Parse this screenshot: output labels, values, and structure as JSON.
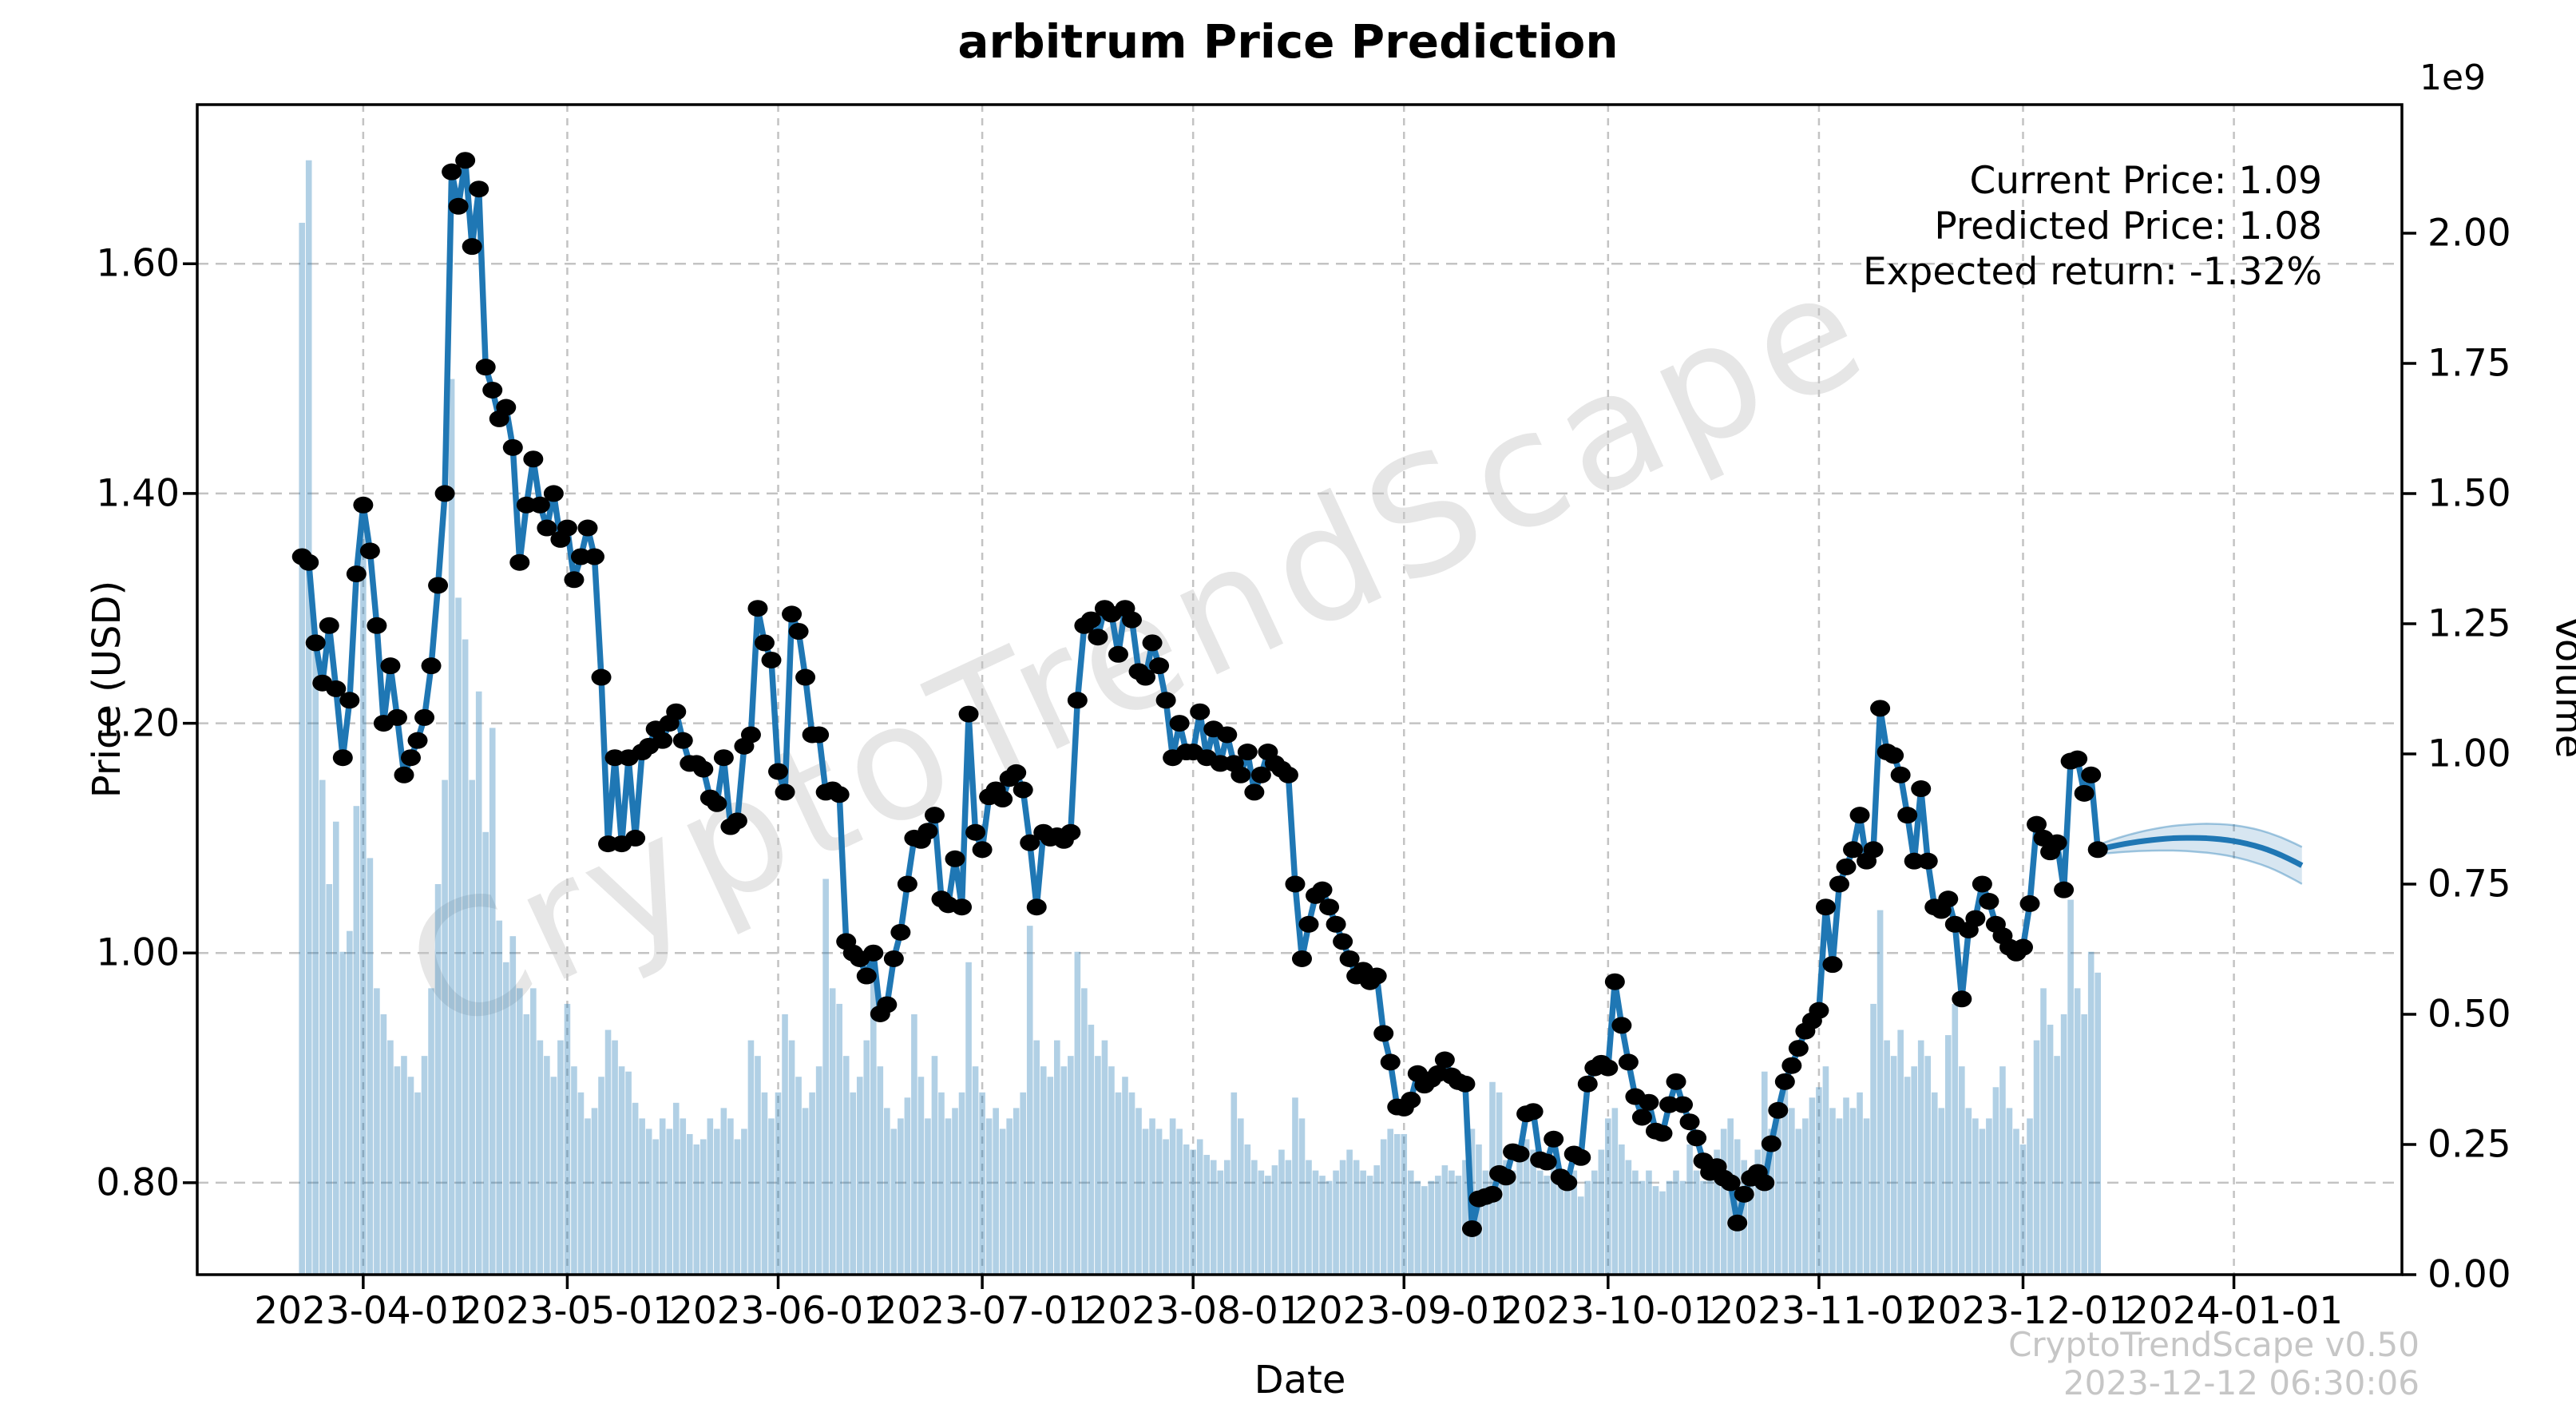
{
  "title": "arbitrum Price Prediction",
  "watermark": "CryptoTrendScape",
  "annotation": {
    "line1": "Current Price: 1.09",
    "line2": "Predicted Price: 1.08",
    "line3": "Expected return: -1.32%"
  },
  "footer": {
    "line1": "CryptoTrendScape v0.50",
    "line2": "2023-12-12 06:30:06"
  },
  "axes": {
    "x_label": "Date",
    "y_left_label": "Price (USD)",
    "y_right_label": "Volume",
    "offset_text": "1e9",
    "x_ticks": [
      {
        "label": "2023-04-01",
        "day": 9
      },
      {
        "label": "2023-05-01",
        "day": 39
      },
      {
        "label": "2023-06-01",
        "day": 70
      },
      {
        "label": "2023-07-01",
        "day": 100
      },
      {
        "label": "2023-08-01",
        "day": 131
      },
      {
        "label": "2023-09-01",
        "day": 162
      },
      {
        "label": "2023-10-01",
        "day": 192
      },
      {
        "label": "2023-11-01",
        "day": 223
      },
      {
        "label": "2023-12-01",
        "day": 253
      },
      {
        "label": "2024-01-01",
        "day": 284
      }
    ],
    "price_ticks": [
      0.8,
      1.0,
      1.2,
      1.4,
      1.6
    ],
    "volume_ticks": [
      0.0,
      0.25,
      0.5,
      0.75,
      1.0,
      1.25,
      1.5,
      1.75,
      2.0
    ],
    "price_lim": [
      0.72,
      1.7385
    ],
    "volume_lim": [
      0,
      2.2469
    ],
    "x_lim_days": [
      -15.4,
      308.7
    ]
  },
  "colors": {
    "line": "#1f77b4",
    "marker": "#000000",
    "bars": "rgba(31,119,180,0.35)",
    "band_fill": "rgba(31,119,180,0.18)",
    "band_edge": "rgba(31,119,180,0.40)",
    "grid": "#c3c3c3",
    "spine": "#000000"
  },
  "chart_data": {
    "type": "line+bar",
    "title": "arbitrum Price Prediction",
    "xlabel": "Date",
    "ylabel_left": "Price (USD)",
    "ylabel_right": "Volume",
    "start_date": "2023-03-23",
    "history_end_date": "2023-12-12",
    "current_price": 1.09,
    "predicted_price": 1.08,
    "expected_return_pct": -1.32,
    "price": [
      1.345,
      1.34,
      1.27,
      1.235,
      1.285,
      1.23,
      1.17,
      1.22,
      1.33,
      1.39,
      1.35,
      1.285,
      1.2,
      1.25,
      1.205,
      1.155,
      1.17,
      1.185,
      1.205,
      1.25,
      1.32,
      1.4,
      1.68,
      1.65,
      1.69,
      1.615,
      1.665,
      1.51,
      1.49,
      1.465,
      1.475,
      1.44,
      1.34,
      1.39,
      1.43,
      1.39,
      1.37,
      1.4,
      1.36,
      1.37,
      1.325,
      1.345,
      1.37,
      1.345,
      1.24,
      1.095,
      1.17,
      1.095,
      1.17,
      1.1,
      1.175,
      1.18,
      1.195,
      1.185,
      1.2,
      1.21,
      1.185,
      1.165,
      1.165,
      1.16,
      1.135,
      1.13,
      1.17,
      1.11,
      1.115,
      1.18,
      1.19,
      1.3,
      1.27,
      1.255,
      1.158,
      1.14,
      1.295,
      1.28,
      1.24,
      1.19,
      1.19,
      1.14,
      1.142,
      1.138,
      1.01,
      1.0,
      0.995,
      0.98,
      1.0,
      0.947,
      0.955,
      0.995,
      1.018,
      1.06,
      1.1,
      1.098,
      1.106,
      1.12,
      1.047,
      1.042,
      1.082,
      1.04,
      1.208,
      1.105,
      1.09,
      1.136,
      1.142,
      1.134,
      1.152,
      1.157,
      1.142,
      1.096,
      1.04,
      1.105,
      1.1,
      1.102,
      1.098,
      1.105,
      1.22,
      1.285,
      1.29,
      1.275,
      1.3,
      1.295,
      1.26,
      1.3,
      1.29,
      1.245,
      1.24,
      1.27,
      1.25,
      1.22,
      1.17,
      1.2,
      1.175,
      1.175,
      1.21,
      1.17,
      1.195,
      1.165,
      1.19,
      1.165,
      1.155,
      1.175,
      1.14,
      1.155,
      1.175,
      1.165,
      1.16,
      1.155,
      1.06,
      0.995,
      1.025,
      1.05,
      1.055,
      1.04,
      1.025,
      1.01,
      0.995,
      0.98,
      0.985,
      0.975,
      0.98,
      0.93,
      0.905,
      0.866,
      0.865,
      0.872,
      0.895,
      0.885,
      0.89,
      0.895,
      0.907,
      0.893,
      0.888,
      0.886,
      0.76,
      0.786,
      0.788,
      0.79,
      0.808,
      0.805,
      0.827,
      0.825,
      0.86,
      0.862,
      0.82,
      0.818,
      0.838,
      0.805,
      0.8,
      0.825,
      0.822,
      0.886,
      0.9,
      0.904,
      0.9,
      0.975,
      0.937,
      0.905,
      0.875,
      0.857,
      0.87,
      0.845,
      0.843,
      0.868,
      0.888,
      0.868,
      0.853,
      0.839,
      0.819,
      0.809,
      0.814,
      0.804,
      0.8,
      0.765,
      0.79,
      0.804,
      0.809,
      0.8,
      0.834,
      0.863,
      0.888,
      0.902,
      0.917,
      0.932,
      0.941,
      0.95,
      1.04,
      0.99,
      1.06,
      1.075,
      1.09,
      1.12,
      1.08,
      1.09,
      1.213,
      1.175,
      1.172,
      1.155,
      1.12,
      1.08,
      1.143,
      1.08,
      1.04,
      1.037,
      1.047,
      1.025,
      0.96,
      1.02,
      1.03,
      1.06,
      1.045,
      1.025,
      1.015,
      1.005,
      1.0,
      1.005,
      1.043,
      1.112,
      1.1,
      1.088,
      1.096,
      1.055,
      1.167,
      1.169,
      1.139,
      1.155,
      1.09
    ],
    "volume_1e9": [
      2.02,
      2.14,
      1.2,
      0.95,
      0.75,
      0.87,
      0.62,
      0.66,
      0.9,
      1.45,
      0.8,
      0.55,
      0.5,
      0.45,
      0.4,
      0.42,
      0.38,
      0.35,
      0.42,
      0.55,
      0.75,
      0.95,
      1.72,
      1.3,
      1.22,
      0.95,
      1.12,
      0.85,
      1.05,
      0.68,
      0.6,
      0.65,
      0.55,
      0.5,
      0.55,
      0.45,
      0.42,
      0.38,
      0.45,
      0.52,
      0.4,
      0.35,
      0.3,
      0.32,
      0.38,
      0.47,
      0.45,
      0.4,
      0.39,
      0.33,
      0.3,
      0.28,
      0.26,
      0.3,
      0.28,
      0.33,
      0.3,
      0.27,
      0.25,
      0.26,
      0.3,
      0.28,
      0.32,
      0.3,
      0.26,
      0.28,
      0.45,
      0.42,
      0.35,
      0.3,
      0.35,
      0.5,
      0.45,
      0.38,
      0.32,
      0.35,
      0.4,
      0.76,
      0.55,
      0.52,
      0.42,
      0.35,
      0.38,
      0.45,
      0.59,
      0.4,
      0.32,
      0.28,
      0.3,
      0.34,
      0.5,
      0.38,
      0.3,
      0.42,
      0.35,
      0.3,
      0.32,
      0.35,
      0.6,
      0.4,
      0.35,
      0.3,
      0.32,
      0.28,
      0.3,
      0.32,
      0.35,
      0.67,
      0.45,
      0.4,
      0.38,
      0.45,
      0.4,
      0.42,
      0.62,
      0.55,
      0.48,
      0.42,
      0.45,
      0.4,
      0.35,
      0.38,
      0.35,
      0.32,
      0.28,
      0.3,
      0.28,
      0.26,
      0.3,
      0.28,
      0.25,
      0.24,
      0.26,
      0.23,
      0.22,
      0.2,
      0.22,
      0.35,
      0.3,
      0.25,
      0.22,
      0.2,
      0.19,
      0.21,
      0.24,
      0.22,
      0.34,
      0.3,
      0.22,
      0.2,
      0.19,
      0.18,
      0.2,
      0.22,
      0.24,
      0.22,
      0.2,
      0.19,
      0.21,
      0.26,
      0.28,
      0.27,
      0.27,
      0.2,
      0.18,
      0.17,
      0.18,
      0.19,
      0.21,
      0.2,
      0.19,
      0.22,
      0.28,
      0.25,
      0.2,
      0.37,
      0.35,
      0.22,
      0.2,
      0.22,
      0.26,
      0.24,
      0.2,
      0.19,
      0.22,
      0.2,
      0.18,
      0.2,
      0.15,
      0.18,
      0.2,
      0.24,
      0.3,
      0.32,
      0.25,
      0.22,
      0.2,
      0.18,
      0.2,
      0.17,
      0.16,
      0.18,
      0.2,
      0.18,
      0.25,
      0.2,
      0.18,
      0.22,
      0.24,
      0.28,
      0.3,
      0.26,
      0.22,
      0.2,
      0.24,
      0.39,
      0.28,
      0.3,
      0.36,
      0.32,
      0.28,
      0.3,
      0.34,
      0.36,
      0.4,
      0.32,
      0.3,
      0.34,
      0.32,
      0.35,
      0.3,
      0.52,
      0.7,
      0.45,
      0.42,
      0.47,
      0.38,
      0.4,
      0.45,
      0.42,
      0.35,
      0.32,
      0.46,
      0.52,
      0.4,
      0.32,
      0.3,
      0.28,
      0.3,
      0.36,
      0.4,
      0.32,
      0.28,
      0.25,
      0.3,
      0.45,
      0.55,
      0.48,
      0.42,
      0.5,
      0.72,
      0.55,
      0.5,
      0.62,
      0.58
    ],
    "prediction": [
      1.09,
      1.0914,
      1.0927,
      1.0939,
      1.095,
      1.096,
      1.0969,
      1.0977,
      1.0984,
      1.099,
      1.0995,
      1.0999,
      1.1001,
      1.1002,
      1.1002,
      1.1001,
      1.0999,
      1.0995,
      1.099,
      1.0983,
      1.0974,
      1.0963,
      1.095,
      1.0935,
      1.0918,
      1.0898,
      1.0875,
      1.085,
      1.0822,
      1.0793,
      1.0762
    ],
    "prediction_band_halfwidth": [
      0.004,
      0.0048,
      0.0056,
      0.0063,
      0.007,
      0.0076,
      0.0082,
      0.0088,
      0.0093,
      0.0098,
      0.0103,
      0.0107,
      0.0111,
      0.0115,
      0.0119,
      0.0123,
      0.0126,
      0.0129,
      0.0132,
      0.0135,
      0.0138,
      0.0141,
      0.0143,
      0.0146,
      0.0148,
      0.015,
      0.0152,
      0.0155,
      0.0157,
      0.0159,
      0.0161
    ]
  }
}
